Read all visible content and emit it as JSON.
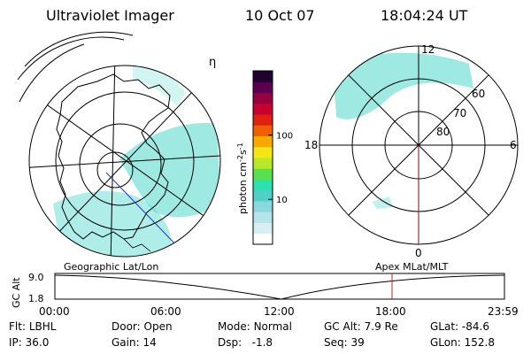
{
  "header": {
    "title": "Ultraviolet Imager",
    "date": "10 Oct 07",
    "time": "18:04:24 UT"
  },
  "colorbar": {
    "label": "photon cm",
    "label_sup1": "-2",
    "label_mid": "s",
    "label_sup2": "-1",
    "ticks": [
      {
        "value": 100,
        "label": "100"
      },
      {
        "value": 10,
        "label": "10"
      }
    ],
    "range": [
      2,
      1000
    ],
    "scale": "log",
    "colors": [
      "#ffffff",
      "#d8eef2",
      "#b6e4ea",
      "#8ad9df",
      "#4fd1c6",
      "#2ee0b0",
      "#58e050",
      "#b8e828",
      "#f4e614",
      "#f8a800",
      "#f06000",
      "#e02010",
      "#c80030",
      "#960040",
      "#5a0050",
      "#200030"
    ]
  },
  "geo_map": {
    "label": "Geographic Lat/Lon",
    "corner_glyph": "η",
    "aurora_color": "#4ed8cc"
  },
  "apex_map": {
    "label": "Apex MLat/MLT",
    "mlt_labels": {
      "top": "12",
      "left": "18",
      "right": "6",
      "bottom": "0"
    },
    "mlat_labels": [
      "60",
      "70",
      "80"
    ]
  },
  "altitude_panel": {
    "ylabel": "GC Alt",
    "yticks": [
      "9.0",
      "1.8"
    ],
    "xticks": [
      "00:00",
      "06:00",
      "12:00",
      "18:00",
      "23:59"
    ],
    "current_marker_time": "18:04",
    "marker_color": "#cc2222"
  },
  "status": {
    "row1": [
      {
        "key": "Flt:",
        "value": "LBHL"
      },
      {
        "key": "Door:",
        "value": "Open"
      },
      {
        "key": "Mode:",
        "value": "Normal"
      },
      {
        "key": "GC Alt:",
        "value": "7.9 Re"
      },
      {
        "key": "GLat:",
        "value": "-84.6"
      }
    ],
    "row2": [
      {
        "key": "IP:",
        "value": "36.0"
      },
      {
        "key": "Gain:",
        "value": "14"
      },
      {
        "key": "Dsp:",
        "value": "-1.8"
      },
      {
        "key": "Seq:",
        "value": "39"
      },
      {
        "key": "GLon:",
        "value": "152.8"
      }
    ]
  }
}
